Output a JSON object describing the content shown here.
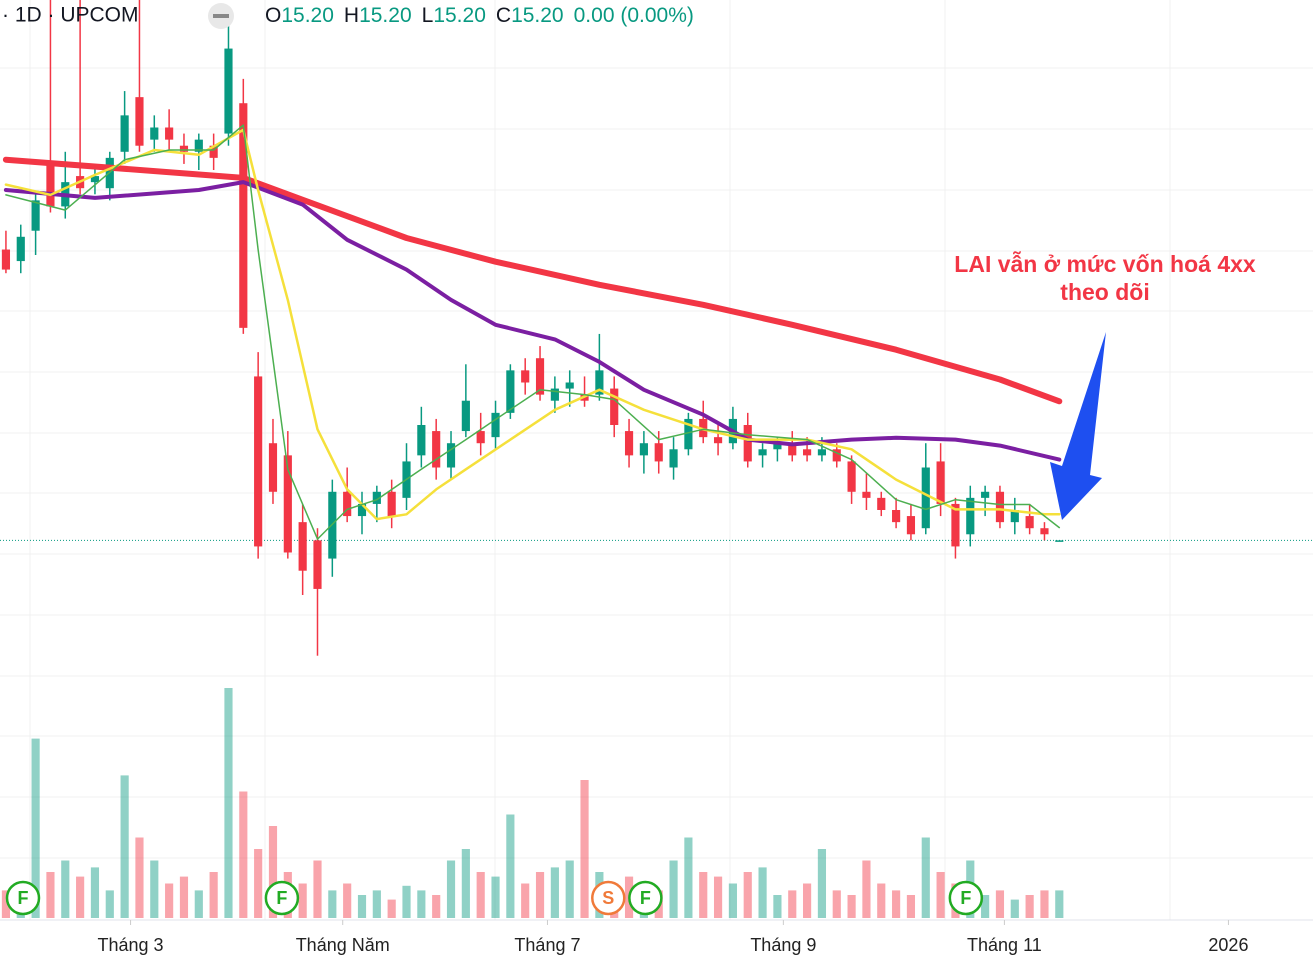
{
  "header": {
    "symbol": "· 1D · UPCOM",
    "ohlc": [
      {
        "key": "O",
        "price": {
          "value": 15.2,
          "label": "15.20"
        }
      },
      {
        "key": "H",
        "price": {
          "value": 15.2,
          "label": "15.20"
        }
      },
      {
        "key": "L",
        "price": {
          "value": 15.2,
          "label": "15.20"
        }
      },
      {
        "key": "C",
        "price": {
          "value": 15.2,
          "label": "15.20"
        }
      }
    ],
    "change": "0.00 (0.00%)"
  },
  "chart_data": {
    "type": "candlestick",
    "open": [
      19.99,
      19.8,
      20.3,
      21.4,
      20.7,
      21.2,
      21.1,
      21.0,
      21.6,
      22.5,
      21.8,
      22.0,
      21.7,
      21.6,
      21.7,
      21.9,
      22.4,
      17.9,
      16.8,
      16.6,
      15.5,
      15.2,
      14.9,
      16.0,
      15.6,
      15.8,
      16.0,
      15.9,
      16.6,
      17.0,
      16.4,
      17.0,
      17.0,
      16.9,
      17.3,
      18.0,
      18.2,
      17.5,
      17.7,
      17.6,
      17.6,
      17.7,
      17.0,
      16.6,
      16.8,
      16.4,
      16.7,
      17.2,
      16.9,
      16.8,
      17.1,
      16.6,
      16.7,
      16.8,
      16.7,
      16.6,
      16.7,
      16.5,
      16.0,
      15.9,
      15.7,
      15.6,
      15.4,
      16.5,
      15.8,
      15.3,
      15.9,
      16.0,
      15.5,
      15.6,
      15.4,
      15.2
    ],
    "high": [
      20.3,
      20.4,
      20.9,
      24.1,
      21.6,
      24.1,
      21.4,
      21.6,
      22.6,
      24.1,
      22.2,
      22.3,
      21.9,
      21.9,
      21.9,
      23.7,
      22.8,
      18.3,
      17.2,
      17.0,
      15.8,
      15.4,
      16.2,
      16.4,
      16.0,
      16.1,
      16.2,
      16.8,
      17.4,
      17.2,
      17.0,
      18.1,
      17.3,
      17.5,
      18.1,
      18.2,
      18.4,
      17.9,
      18.0,
      17.9,
      18.6,
      17.9,
      17.2,
      17.0,
      17.0,
      16.9,
      17.3,
      17.5,
      17.1,
      17.4,
      17.3,
      16.8,
      16.9,
      17.0,
      16.9,
      16.9,
      16.8,
      16.6,
      16.3,
      16.0,
      15.9,
      15.8,
      16.8,
      16.8,
      15.9,
      16.1,
      16.1,
      16.1,
      15.9,
      15.8,
      15.5,
      15.2
    ],
    "low": [
      19.6,
      19.6,
      19.9,
      20.6,
      20.5,
      20.9,
      20.9,
      20.8,
      21.4,
      21.6,
      21.6,
      21.6,
      21.4,
      21.3,
      21.3,
      21.7,
      18.6,
      14.9,
      15.8,
      14.9,
      14.3,
      13.3,
      14.6,
      15.5,
      15.3,
      15.5,
      15.4,
      15.7,
      16.4,
      16.2,
      16.2,
      16.9,
      16.6,
      16.7,
      17.2,
      17.6,
      17.5,
      17.3,
      17.4,
      17.4,
      17.5,
      16.9,
      16.4,
      16.3,
      16.3,
      16.2,
      16.6,
      16.8,
      16.6,
      16.7,
      16.4,
      16.4,
      16.5,
      16.5,
      16.5,
      16.5,
      16.4,
      15.8,
      15.7,
      15.6,
      15.4,
      15.2,
      15.3,
      15.6,
      14.9,
      15.1,
      15.6,
      15.4,
      15.3,
      15.3,
      15.2,
      15.2
    ],
    "close": [
      19.66,
      20.2,
      20.8,
      20.7,
      21.1,
      21.0,
      21.2,
      21.5,
      22.2,
      21.7,
      22.0,
      21.8,
      21.6,
      21.8,
      21.5,
      23.3,
      18.7,
      15.1,
      16.0,
      15.0,
      14.7,
      14.4,
      16.0,
      15.6,
      15.8,
      16.0,
      15.6,
      16.5,
      17.1,
      16.4,
      16.8,
      17.5,
      16.8,
      17.3,
      18.0,
      17.8,
      17.6,
      17.7,
      17.8,
      17.5,
      18.0,
      17.1,
      16.6,
      16.8,
      16.5,
      16.7,
      17.2,
      16.9,
      16.8,
      17.2,
      16.5,
      16.7,
      16.8,
      16.6,
      16.6,
      16.7,
      16.5,
      16.0,
      15.9,
      15.7,
      15.5,
      15.3,
      16.4,
      15.8,
      15.1,
      15.9,
      16.0,
      15.5,
      15.7,
      15.4,
      15.3,
      15.2
    ],
    "volume": [
      12,
      10,
      78,
      20,
      25,
      18,
      22,
      12,
      62,
      35,
      25,
      15,
      18,
      12,
      20,
      100,
      55,
      30,
      40,
      20,
      15,
      25,
      12,
      15,
      10,
      12,
      8,
      14,
      12,
      10,
      25,
      30,
      20,
      18,
      45,
      15,
      20,
      22,
      25,
      60,
      20,
      15,
      18,
      10,
      12,
      25,
      35,
      20,
      18,
      15,
      20,
      22,
      10,
      12,
      15,
      30,
      12,
      10,
      25,
      15,
      12,
      10,
      35,
      20,
      15,
      25,
      10,
      12,
      8,
      10,
      12,
      12
    ],
    "vlim": [
      0,
      100
    ],
    "ylim": [
      12.9,
      24.1
    ],
    "xlim": [
      -0.4,
      88.1
    ],
    "xticks": [
      {
        "value": 8.4,
        "label": "Tháng 3"
      },
      {
        "value": 22.7,
        "label": "Tháng Năm"
      },
      {
        "value": 36.5,
        "label": "Tháng 7"
      },
      {
        "value": 52.4,
        "label": "Tháng 9"
      },
      {
        "value": 67.3,
        "label": "Tháng 11"
      },
      {
        "value": 82.4,
        "label": "2026"
      }
    ],
    "series": [
      {
        "color": "#f23645",
        "x": [
          0,
          16,
          20,
          27,
          33,
          40,
          47,
          53,
          60,
          67,
          71
        ],
        "values": [
          21.47,
          21.17,
          20.81,
          20.18,
          19.79,
          19.41,
          19.08,
          18.75,
          18.34,
          17.85,
          17.49
        ]
      },
      {
        "color": "#7b1fa2",
        "x": [
          0,
          6,
          13,
          16,
          20,
          23,
          27,
          30,
          33,
          37,
          40,
          43,
          47,
          50,
          53,
          57,
          60,
          64,
          67,
          71
        ],
        "values": [
          20.97,
          20.84,
          20.97,
          21.1,
          20.73,
          20.15,
          19.66,
          19.16,
          18.75,
          18.51,
          18.14,
          17.68,
          17.27,
          16.86,
          16.78,
          16.86,
          16.89,
          16.86,
          16.76,
          16.53
        ]
      },
      {
        "color": "#f5e03b",
        "x": [
          0,
          3,
          6,
          10,
          13,
          16,
          17,
          19,
          21,
          23,
          25,
          27,
          29,
          31,
          34,
          37,
          40,
          43,
          47,
          50,
          54,
          57,
          60,
          64,
          67,
          70,
          71
        ],
        "values": [
          21.06,
          20.89,
          21.22,
          21.63,
          21.55,
          21.96,
          20.97,
          19.16,
          17.03,
          16.04,
          15.55,
          15.63,
          16.04,
          16.37,
          16.86,
          17.35,
          17.68,
          17.35,
          17.03,
          16.86,
          16.86,
          16.7,
          16.2,
          15.71,
          15.71,
          15.63,
          15.63
        ]
      },
      {
        "color": "#4caf50",
        "x": [
          0,
          4,
          8,
          11,
          14,
          16,
          17,
          19,
          21,
          23,
          25,
          28,
          31,
          33,
          36,
          39,
          41,
          44,
          47,
          50,
          54,
          57,
          60,
          62,
          64,
          67,
          69,
          71
        ],
        "values": [
          20.89,
          20.64,
          21.47,
          21.63,
          21.63,
          22.04,
          19.99,
          16.37,
          15.22,
          15.71,
          15.87,
          16.37,
          16.86,
          17.19,
          17.68,
          17.6,
          17.52,
          16.86,
          17.03,
          16.94,
          16.86,
          16.53,
          15.87,
          15.71,
          15.87,
          15.79,
          15.79,
          15.41
        ]
      }
    ],
    "up_color": "#089981",
    "down_color": "#f23645",
    "events": [
      {
        "x": 1.15,
        "label": "F",
        "color": "#22ab23"
      },
      {
        "x": 18.6,
        "label": "F",
        "color": "#22ab23"
      },
      {
        "x": 40.6,
        "label": "S",
        "color": "#f07a3a"
      },
      {
        "x": 43.1,
        "label": "F",
        "color": "#22ab23"
      },
      {
        "x": 64.7,
        "label": "F",
        "color": "#22ab23"
      }
    ],
    "annotation": [
      "LAI vẫn ở mức vốn hoá 4xx",
      "theo dõi"
    ]
  }
}
